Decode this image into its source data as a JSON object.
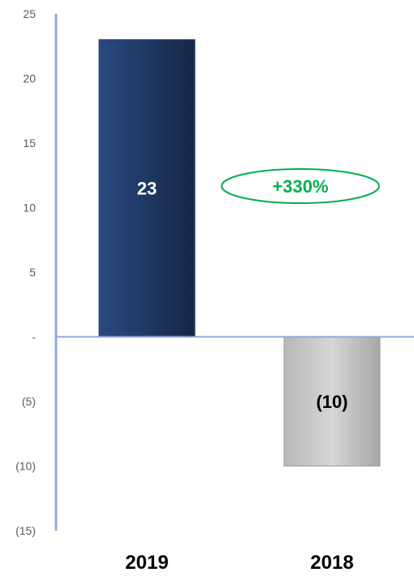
{
  "chart_data": {
    "type": "bar",
    "categories": [
      "2019",
      "2018"
    ],
    "values": [
      23,
      -10
    ],
    "data_labels": [
      "23",
      "(10)"
    ],
    "ylim": [
      -15,
      25
    ],
    "yticks": [
      {
        "value": 25,
        "label": "25"
      },
      {
        "value": 20,
        "label": "20"
      },
      {
        "value": 15,
        "label": "15"
      },
      {
        "value": 10,
        "label": "10"
      },
      {
        "value": 5,
        "label": "5"
      },
      {
        "value": 0,
        "label": "-"
      },
      {
        "value": -5,
        "label": "(5)"
      },
      {
        "value": -10,
        "label": "(10)"
      },
      {
        "value": -15,
        "label": "(15)"
      }
    ],
    "annotation": "+330%",
    "grid": false,
    "title": "",
    "xlabel": "",
    "ylabel": "",
    "colors": {
      "bar_2019": "#1f3864",
      "bar_2018": "#c8c8c8",
      "axis": "#8ea9db",
      "annotation": "#00b050",
      "label_2019": "#ffffff",
      "label_2018": "#000000"
    }
  }
}
